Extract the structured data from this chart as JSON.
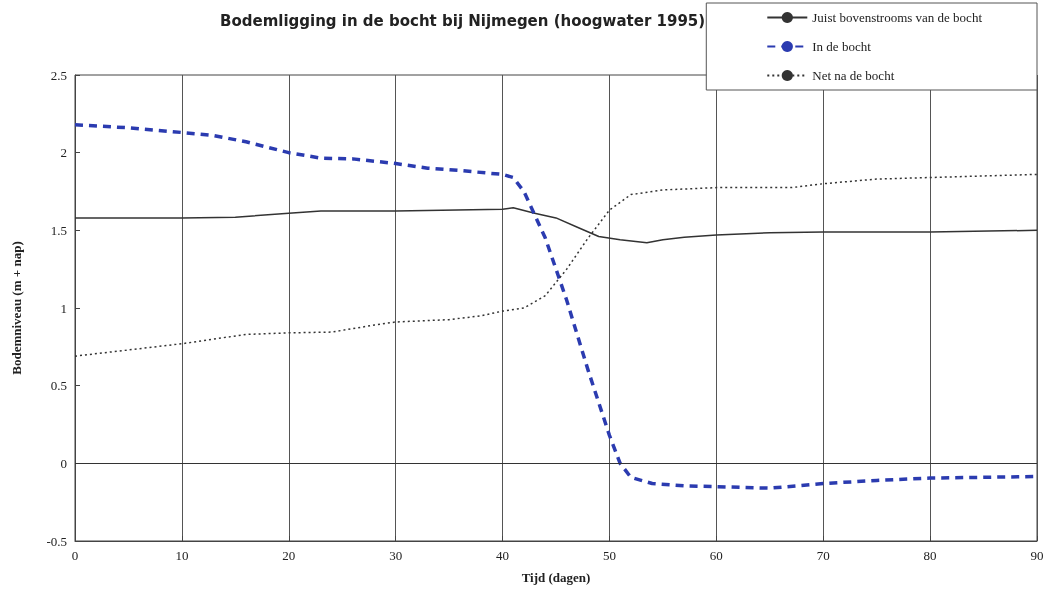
{
  "chart_data": {
    "type": "line",
    "title": "Bodemligging in de bocht bij Nijmegen (hoogwater 1995)",
    "xlabel": "Tijd (dagen)",
    "ylabel": "Bodemniveau (m + nap)",
    "xlim": [
      0,
      90
    ],
    "xticks": [
      0,
      10,
      20,
      30,
      40,
      50,
      60,
      70,
      80,
      90
    ],
    "ylim": [
      -0.5,
      2.5
    ],
    "yticks": [
      -0.5,
      0,
      0.5,
      1,
      1.5,
      2,
      2.5
    ],
    "grid": "x",
    "legend": "top right",
    "marker": "none",
    "ref_lines": [
      {
        "axis": "y",
        "value": 0,
        "color": "#333333"
      }
    ],
    "series": [
      {
        "name": "Juist bovenstrooms van de bocht",
        "color": "#333333",
        "line_style": "solid",
        "x": [
          0,
          10,
          15,
          20,
          23,
          30,
          40,
          41,
          43,
          45,
          47,
          49,
          51,
          53.5,
          55,
          57,
          60,
          65,
          70,
          80,
          90
        ],
        "values": [
          1.58,
          1.58,
          1.585,
          1.61,
          1.625,
          1.625,
          1.635,
          1.645,
          1.61,
          1.58,
          1.52,
          1.46,
          1.44,
          1.42,
          1.44,
          1.455,
          1.47,
          1.485,
          1.49,
          1.49,
          1.5
        ]
      },
      {
        "name": "In de bocht",
        "color": "#2b3bb0",
        "line_style": "dashed",
        "x": [
          0,
          5,
          10,
          13,
          16,
          20,
          23,
          26,
          30,
          33,
          36,
          40,
          41,
          42,
          44,
          46,
          48,
          50,
          51,
          52,
          54,
          57,
          60,
          65,
          70,
          75,
          80,
          85,
          90
        ],
        "values": [
          2.18,
          2.16,
          2.13,
          2.11,
          2.07,
          2,
          1.965,
          1.96,
          1.93,
          1.9,
          1.885,
          1.86,
          1.84,
          1.75,
          1.45,
          1.05,
          0.6,
          0.18,
          0,
          -0.09,
          -0.13,
          -0.145,
          -0.15,
          -0.16,
          -0.13,
          -0.11,
          -0.095,
          -0.09,
          -0.085
        ]
      },
      {
        "name": "Net na de bocht",
        "color": "#333333",
        "line_style": "dotted",
        "x": [
          0,
          5,
          10,
          13,
          16,
          20,
          24,
          28,
          30,
          35,
          38,
          40,
          42,
          44,
          46,
          48,
          50,
          52,
          55,
          60,
          67,
          70,
          75,
          80,
          90
        ],
        "values": [
          0.69,
          0.73,
          0.77,
          0.8,
          0.83,
          0.84,
          0.845,
          0.89,
          0.91,
          0.925,
          0.95,
          0.98,
          1,
          1.08,
          1.25,
          1.45,
          1.63,
          1.73,
          1.76,
          1.775,
          1.775,
          1.8,
          1.83,
          1.84,
          1.86
        ]
      }
    ]
  }
}
